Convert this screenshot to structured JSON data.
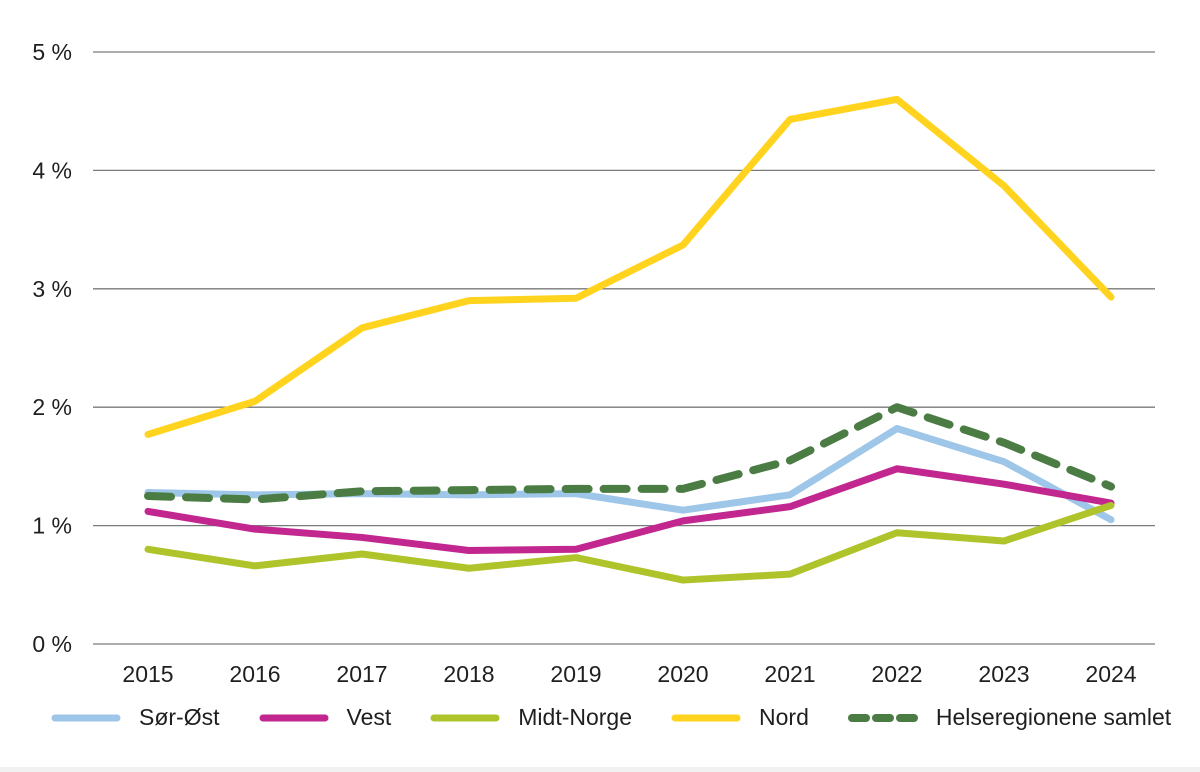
{
  "chart_data": {
    "type": "line",
    "title": "",
    "xlabel": "",
    "ylabel": "",
    "x": [
      2015,
      2016,
      2017,
      2018,
      2019,
      2020,
      2021,
      2022,
      2023,
      2024
    ],
    "y_tick_labels": [
      "0 %",
      "1 %",
      "2 %",
      "3 %",
      "4 %",
      "5 %"
    ],
    "ylim": [
      0,
      5
    ],
    "grid": "horizontal",
    "gridline_color": "#7a7a7a",
    "text_color": "#1f1f1f",
    "legend_position": "bottom",
    "series": [
      {
        "name": "Sør-Øst",
        "color": "#9DC6E8",
        "dashed": false,
        "values": [
          1.28,
          1.26,
          1.27,
          1.26,
          1.27,
          1.13,
          1.26,
          1.82,
          1.54,
          1.05
        ]
      },
      {
        "name": "Vest",
        "color": "#C2268F",
        "dashed": false,
        "values": [
          1.12,
          0.97,
          0.9,
          0.79,
          0.8,
          1.04,
          1.16,
          1.48,
          1.35,
          1.19
        ]
      },
      {
        "name": "Midt-Norge",
        "color": "#AFC32B",
        "dashed": false,
        "values": [
          0.8,
          0.66,
          0.76,
          0.64,
          0.73,
          0.54,
          0.59,
          0.94,
          0.87,
          1.17
        ]
      },
      {
        "name": "Nord",
        "color": "#FFD31E",
        "dashed": false,
        "values": [
          1.77,
          2.05,
          2.67,
          2.9,
          2.92,
          3.37,
          4.43,
          4.6,
          3.87,
          2.93
        ]
      },
      {
        "name": "Helseregionene samlet",
        "color": "#4A7C43",
        "dashed": true,
        "values": [
          1.25,
          1.22,
          1.29,
          1.3,
          1.31,
          1.31,
          1.55,
          2.0,
          1.7,
          1.33
        ]
      }
    ]
  }
}
